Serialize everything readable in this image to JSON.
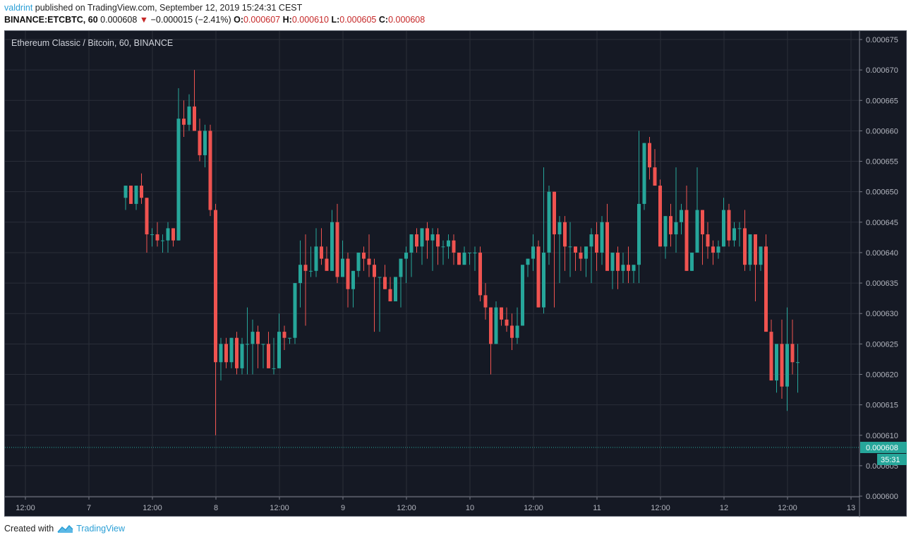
{
  "header": {
    "author": "valdrint",
    "published_text": "published on TradingView.com, September 12, 2019 15:24:31 CEST",
    "symbol": "BINANCE:ETCBTC, 60",
    "last_price": "0.000608",
    "direction_icon": "down-triangle-icon",
    "change": "−0.000015 (−2.41%)",
    "ohlc": {
      "o_label": "O:",
      "o": "0.000607",
      "h_label": "H:",
      "h": "0.000610",
      "l_label": "L:",
      "l": "0.000605",
      "c_label": "C:",
      "c": "0.000608"
    }
  },
  "chart": {
    "title": "Ethereum Classic / Bitcoin, 60, BINANCE",
    "last_price_label": "0.000608",
    "countdown_label": "35:31",
    "colors": {
      "background": "#151924",
      "grid": "#2a2e39",
      "up": "#26a69a",
      "down": "#ef5350",
      "last_price_line": "#26a69a",
      "axis_text": "#b2b5be"
    }
  },
  "footer": {
    "created_with": "Created with",
    "brand": "TradingView",
    "logo_icon": "tradingview-cloud-icon"
  },
  "chart_data": {
    "type": "candlestick",
    "title": "Ethereum Classic / Bitcoin, 60, BINANCE",
    "symbol": "BINANCE:ETCBTC",
    "interval": "60",
    "xlabel": "",
    "ylabel": "",
    "x_ticks": [
      "12:00",
      "7",
      "12:00",
      "8",
      "12:00",
      "9",
      "12:00",
      "10",
      "12:00",
      "11",
      "12:00",
      "12",
      "12:00",
      "13"
    ],
    "y_ticks": [
      "0.000675",
      "0.000670",
      "0.000665",
      "0.000660",
      "0.000655",
      "0.000650",
      "0.000645",
      "0.000640",
      "0.000635",
      "0.000630",
      "0.000625",
      "0.000620",
      "0.000615",
      "0.000610",
      "0.000605",
      "0.000600"
    ],
    "ylim": [
      0.0006,
      0.000675
    ],
    "grid": true,
    "last": {
      "open": 0.000607,
      "high": 0.00061,
      "low": 0.000605,
      "close": 0.000608,
      "change": -1.5e-05,
      "change_pct": -2.41
    },
    "candles": [
      [
        0.000649,
        0.000651,
        0.000647,
        0.000651
      ],
      [
        0.000651,
        0.000651,
        0.000648,
        0.000648
      ],
      [
        0.000648,
        0.000651,
        0.000647,
        0.000651
      ],
      [
        0.000651,
        0.000653,
        0.000648,
        0.000649
      ],
      [
        0.000649,
        0.000649,
        0.00064,
        0.000643
      ],
      [
        0.000643,
        0.000644,
        0.000641,
        0.000643
      ],
      [
        0.000643,
        0.000645,
        0.000641,
        0.000642
      ],
      [
        0.000642,
        0.000643,
        0.00064,
        0.000642
      ],
      [
        0.000642,
        0.000645,
        0.00064,
        0.000644
      ],
      [
        0.000644,
        0.000644,
        0.000641,
        0.000642
      ],
      [
        0.000642,
        0.000667,
        0.000642,
        0.000662
      ],
      [
        0.000662,
        0.000665,
        0.000659,
        0.000661
      ],
      [
        0.000661,
        0.000666,
        0.00066,
        0.000664
      ],
      [
        0.000664,
        0.00067,
        0.00066,
        0.00066
      ],
      [
        0.00066,
        0.000662,
        0.000655,
        0.000656
      ],
      [
        0.000656,
        0.000661,
        0.000654,
        0.00066
      ],
      [
        0.00066,
        0.000661,
        0.000646,
        0.000647
      ],
      [
        0.000647,
        0.000648,
        0.00061,
        0.000622
      ],
      [
        0.000622,
        0.000626,
        0.000619,
        0.000625
      ],
      [
        0.000625,
        0.000626,
        0.000621,
        0.000622
      ],
      [
        0.000622,
        0.000626,
        0.000621,
        0.000626
      ],
      [
        0.000626,
        0.000627,
        0.00062,
        0.000621
      ],
      [
        0.000621,
        0.000626,
        0.00062,
        0.000625
      ],
      [
        0.000625,
        0.000631,
        0.00062,
        0.000625
      ],
      [
        0.000625,
        0.000629,
        0.00062,
        0.000627
      ],
      [
        0.000627,
        0.000628,
        0.000621,
        0.000625
      ],
      [
        0.000625,
        0.000625,
        0.000621,
        0.000625
      ],
      [
        0.000625,
        0.000627,
        0.000621,
        0.000621
      ],
      [
        0.000621,
        0.000626,
        0.00062,
        0.000621
      ],
      [
        0.000621,
        0.00063,
        0.000621,
        0.000627
      ],
      [
        0.000627,
        0.000628,
        0.000624,
        0.000626
      ],
      [
        0.000626,
        0.000626,
        0.000625,
        0.000626
      ],
      [
        0.000626,
        0.000633,
        0.000625,
        0.000635
      ],
      [
        0.000635,
        0.000642,
        0.000631,
        0.000638
      ],
      [
        0.000638,
        0.000643,
        0.000628,
        0.000637
      ],
      [
        0.000637,
        0.000641,
        0.000636,
        0.000637
      ],
      [
        0.000637,
        0.000644,
        0.000636,
        0.000641
      ],
      [
        0.000641,
        0.000644,
        0.000638,
        0.000639
      ],
      [
        0.000639,
        0.000641,
        0.000638,
        0.000637
      ],
      [
        0.000637,
        0.000647,
        0.000637,
        0.000645
      ],
      [
        0.000645,
        0.000648,
        0.000635,
        0.000636
      ],
      [
        0.000636,
        0.000642,
        0.000636,
        0.000639
      ],
      [
        0.000639,
        0.00064,
        0.000631,
        0.000634
      ],
      [
        0.000634,
        0.000637,
        0.000631,
        0.000637
      ],
      [
        0.000637,
        0.00064,
        0.000636,
        0.00064
      ],
      [
        0.00064,
        0.000641,
        0.000637,
        0.000639
      ],
      [
        0.000639,
        0.000643,
        0.000636,
        0.000638
      ],
      [
        0.000638,
        0.000639,
        0.000627,
        0.000636
      ],
      [
        0.000636,
        0.000636,
        0.000627,
        0.000636
      ],
      [
        0.000636,
        0.000638,
        0.000634,
        0.000634
      ],
      [
        0.000634,
        0.000636,
        0.000632,
        0.000632
      ],
      [
        0.000632,
        0.000636,
        0.000633,
        0.000636
      ],
      [
        0.000636,
        0.000638,
        0.000631,
        0.000639
      ],
      [
        0.000639,
        0.000641,
        0.000635,
        0.00064
      ],
      [
        0.00064,
        0.000643,
        0.000636,
        0.000643
      ],
      [
        0.000643,
        0.000644,
        0.00064,
        0.000641
      ],
      [
        0.000641,
        0.000644,
        0.000638,
        0.000644
      ],
      [
        0.000644,
        0.000645,
        0.000639,
        0.000642
      ],
      [
        0.000642,
        0.000644,
        0.000637,
        0.000643
      ],
      [
        0.000643,
        0.000644,
        0.000638,
        0.000641
      ],
      [
        0.000641,
        0.000642,
        0.000638,
        0.000641
      ],
      [
        0.000641,
        0.000643,
        0.000639,
        0.000642
      ],
      [
        0.000642,
        0.000643,
        0.000638,
        0.00064
      ],
      [
        0.00064,
        0.00064,
        0.000638,
        0.000638
      ],
      [
        0.000638,
        0.000641,
        0.000638,
        0.00064
      ],
      [
        0.00064,
        0.00064,
        0.000638,
        0.00064
      ],
      [
        0.00064,
        0.000641,
        0.000637,
        0.00064
      ],
      [
        0.00064,
        0.000641,
        0.000632,
        0.000633
      ],
      [
        0.000633,
        0.000635,
        0.000629,
        0.000631
      ],
      [
        0.000631,
        0.000631,
        0.00062,
        0.000625
      ],
      [
        0.000625,
        0.000632,
        0.000625,
        0.000631
      ],
      [
        0.000631,
        0.000631,
        0.000628,
        0.000629
      ],
      [
        0.000629,
        0.000631,
        0.000627,
        0.000628
      ],
      [
        0.000628,
        0.00063,
        0.000624,
        0.000626
      ],
      [
        0.000626,
        0.000631,
        0.000625,
        0.000628
      ],
      [
        0.000628,
        0.000636,
        0.000628,
        0.000638
      ],
      [
        0.000638,
        0.000639,
        0.000636,
        0.000639
      ],
      [
        0.000639,
        0.000643,
        0.000637,
        0.000641
      ],
      [
        0.000641,
        0.000642,
        0.000631,
        0.000631
      ],
      [
        0.000631,
        0.000654,
        0.00063,
        0.00064
      ],
      [
        0.00064,
        0.000651,
        0.000638,
        0.00065
      ],
      [
        0.00065,
        0.00065,
        0.000631,
        0.000643
      ],
      [
        0.000643,
        0.000646,
        0.000635,
        0.000645
      ],
      [
        0.000645,
        0.000646,
        0.000637,
        0.000641
      ],
      [
        0.000641,
        0.000645,
        0.000636,
        0.000641
      ],
      [
        0.000641,
        0.000641,
        0.000637,
        0.00064
      ],
      [
        0.00064,
        0.000641,
        0.000637,
        0.000639
      ],
      [
        0.000639,
        0.000641,
        0.000636,
        0.000641
      ],
      [
        0.000641,
        0.000644,
        0.000635,
        0.000643
      ],
      [
        0.000643,
        0.000645,
        0.000637,
        0.00064
      ],
      [
        0.00064,
        0.000646,
        0.000638,
        0.000645
      ],
      [
        0.000645,
        0.000648,
        0.000638,
        0.000637
      ],
      [
        0.000637,
        0.00064,
        0.000634,
        0.00064
      ],
      [
        0.00064,
        0.000641,
        0.000634,
        0.000637
      ],
      [
        0.000637,
        0.00064,
        0.000635,
        0.000638
      ],
      [
        0.000638,
        0.000641,
        0.000635,
        0.000637
      ],
      [
        0.000637,
        0.000637,
        0.000635,
        0.000638
      ],
      [
        0.000638,
        0.00066,
        0.000635,
        0.000648
      ],
      [
        0.000648,
        0.000658,
        0.000647,
        0.000658
      ],
      [
        0.000658,
        0.000659,
        0.000652,
        0.000654
      ],
      [
        0.000654,
        0.000657,
        0.000652,
        0.000651
      ],
      [
        0.000651,
        0.000652,
        0.000641,
        0.000641
      ],
      [
        0.000641,
        0.000646,
        0.000639,
        0.000646
      ],
      [
        0.000646,
        0.000648,
        0.000641,
        0.000643
      ],
      [
        0.000643,
        0.000654,
        0.00064,
        0.000645
      ],
      [
        0.000645,
        0.000648,
        0.000643,
        0.000647
      ],
      [
        0.000647,
        0.000651,
        0.000637,
        0.000637
      ],
      [
        0.000637,
        0.00064,
        0.000637,
        0.00064
      ],
      [
        0.00064,
        0.000654,
        0.00064,
        0.000647
      ],
      [
        0.000647,
        0.000647,
        0.000638,
        0.000643
      ],
      [
        0.000643,
        0.000645,
        0.000639,
        0.000641
      ],
      [
        0.000641,
        0.000642,
        0.000638,
        0.00064
      ],
      [
        0.00064,
        0.000642,
        0.000639,
        0.000641
      ],
      [
        0.000641,
        0.000649,
        0.000641,
        0.000647
      ],
      [
        0.000647,
        0.000648,
        0.000641,
        0.000642
      ],
      [
        0.000642,
        0.000645,
        0.000641,
        0.000644
      ],
      [
        0.000644,
        0.000645,
        0.000641,
        0.000644
      ],
      [
        0.000644,
        0.000647,
        0.000637,
        0.000638
      ],
      [
        0.000638,
        0.000643,
        0.000637,
        0.000643
      ],
      [
        0.000643,
        0.000643,
        0.000632,
        0.000638
      ],
      [
        0.000638,
        0.00064,
        0.000637,
        0.000641
      ],
      [
        0.000641,
        0.000643,
        0.000631,
        0.000627
      ],
      [
        0.000627,
        0.000629,
        0.00062,
        0.000619
      ],
      [
        0.000619,
        0.000622,
        0.000617,
        0.000625
      ],
      [
        0.000625,
        0.000629,
        0.000616,
        0.000618
      ],
      [
        0.000618,
        0.000631,
        0.000614,
        0.000625
      ],
      [
        0.000625,
        0.000629,
        0.00062,
        0.000622
      ],
      [
        0.000622,
        0.000625,
        0.000617,
        0.000622
      ]
    ]
  }
}
